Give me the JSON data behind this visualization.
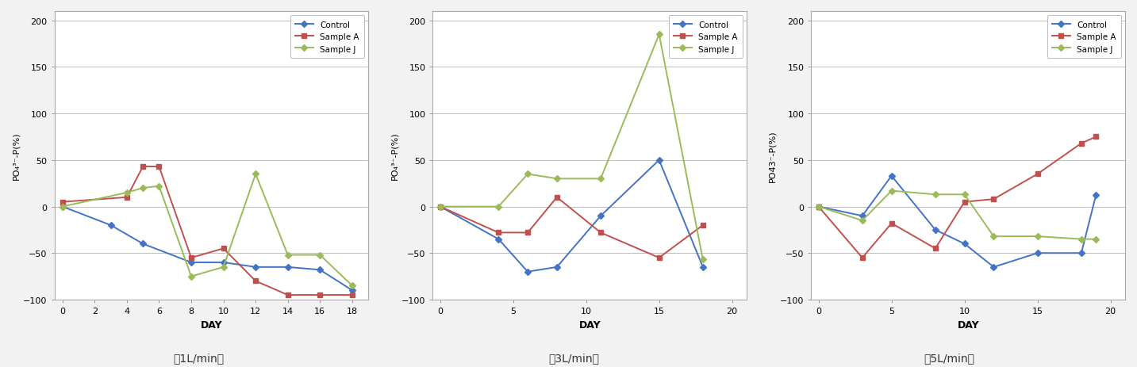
{
  "charts": [
    {
      "title": "　1L/min、",
      "caption": "＜1L/min＞",
      "xlabel": "DAY",
      "ylabel": "PO₄³⁻-P(%)",
      "xlim": [
        -0.5,
        19
      ],
      "ylim": [
        -100,
        210
      ],
      "xticks": [
        0,
        2,
        4,
        6,
        8,
        10,
        12,
        14,
        16,
        18
      ],
      "yticks": [
        -100,
        -50,
        0,
        50,
        100,
        150,
        200
      ],
      "control": {
        "x": [
          0,
          3,
          5,
          8,
          10,
          12,
          14,
          16,
          18
        ],
        "y": [
          0,
          -20,
          -40,
          -60,
          -60,
          -65,
          -65,
          -68,
          -90
        ]
      },
      "sampleA": {
        "x": [
          0,
          4,
          5,
          6,
          8,
          10,
          12,
          14,
          16,
          18
        ],
        "y": [
          5,
          10,
          43,
          43,
          -55,
          -45,
          -80,
          -95,
          -95,
          -95
        ]
      },
      "sampleJ": {
        "x": [
          0,
          4,
          5,
          6,
          8,
          10,
          12,
          14,
          16,
          18
        ],
        "y": [
          0,
          15,
          20,
          22,
          -75,
          -65,
          35,
          -52,
          -52,
          -85
        ]
      }
    },
    {
      "title": "　3L/min、",
      "caption": "＜3L/min＞",
      "xlabel": "DAY",
      "ylabel": "PO₄³⁻-P(%)",
      "xlim": [
        -0.5,
        21
      ],
      "ylim": [
        -100,
        210
      ],
      "xticks": [
        0,
        5,
        10,
        15,
        20
      ],
      "yticks": [
        -100,
        -50,
        0,
        50,
        100,
        150,
        200
      ],
      "control": {
        "x": [
          0,
          4,
          6,
          8,
          11,
          15,
          18
        ],
        "y": [
          0,
          -35,
          -70,
          -65,
          -10,
          50,
          -65
        ]
      },
      "sampleA": {
        "x": [
          0,
          4,
          6,
          8,
          11,
          15,
          18
        ],
        "y": [
          0,
          -28,
          -28,
          10,
          -28,
          -55,
          -20
        ]
      },
      "sampleJ": {
        "x": [
          0,
          4,
          6,
          8,
          11,
          15,
          18
        ],
        "y": [
          0,
          0,
          35,
          30,
          30,
          185,
          -57
        ]
      }
    },
    {
      "title": "　5L/min、",
      "caption": "＜5L/min＞",
      "xlabel": "DAY",
      "ylabel": "PO43⁻-P(%)",
      "xlim": [
        -0.5,
        21
      ],
      "ylim": [
        -100,
        210
      ],
      "xticks": [
        0,
        5,
        10,
        15,
        20
      ],
      "yticks": [
        -100,
        -50,
        0,
        50,
        100,
        150,
        200
      ],
      "control": {
        "x": [
          0,
          3,
          5,
          8,
          10,
          12,
          15,
          18,
          19
        ],
        "y": [
          0,
          -10,
          33,
          -25,
          -40,
          -65,
          -50,
          -50,
          12
        ]
      },
      "sampleA": {
        "x": [
          0,
          3,
          5,
          8,
          10,
          12,
          15,
          18,
          19
        ],
        "y": [
          0,
          -55,
          -18,
          -45,
          5,
          8,
          35,
          68,
          75
        ]
      },
      "sampleJ": {
        "x": [
          0,
          3,
          5,
          8,
          10,
          12,
          15,
          18,
          19
        ],
        "y": [
          0,
          -15,
          17,
          13,
          13,
          -32,
          -32,
          -35,
          -35
        ]
      }
    }
  ],
  "colors": {
    "control": "#4472C4",
    "sampleA": "#C0504D",
    "sampleJ": "#9BBB59"
  },
  "captions": [
    "＜1L/min＞",
    "＜3L/min＞",
    "＜5L/min＞"
  ],
  "background_color": "#F2F2F2",
  "plot_bg_color": "#FFFFFF",
  "grid_color": "#BBBBBB",
  "linewidth": 1.4,
  "markersize": 5
}
